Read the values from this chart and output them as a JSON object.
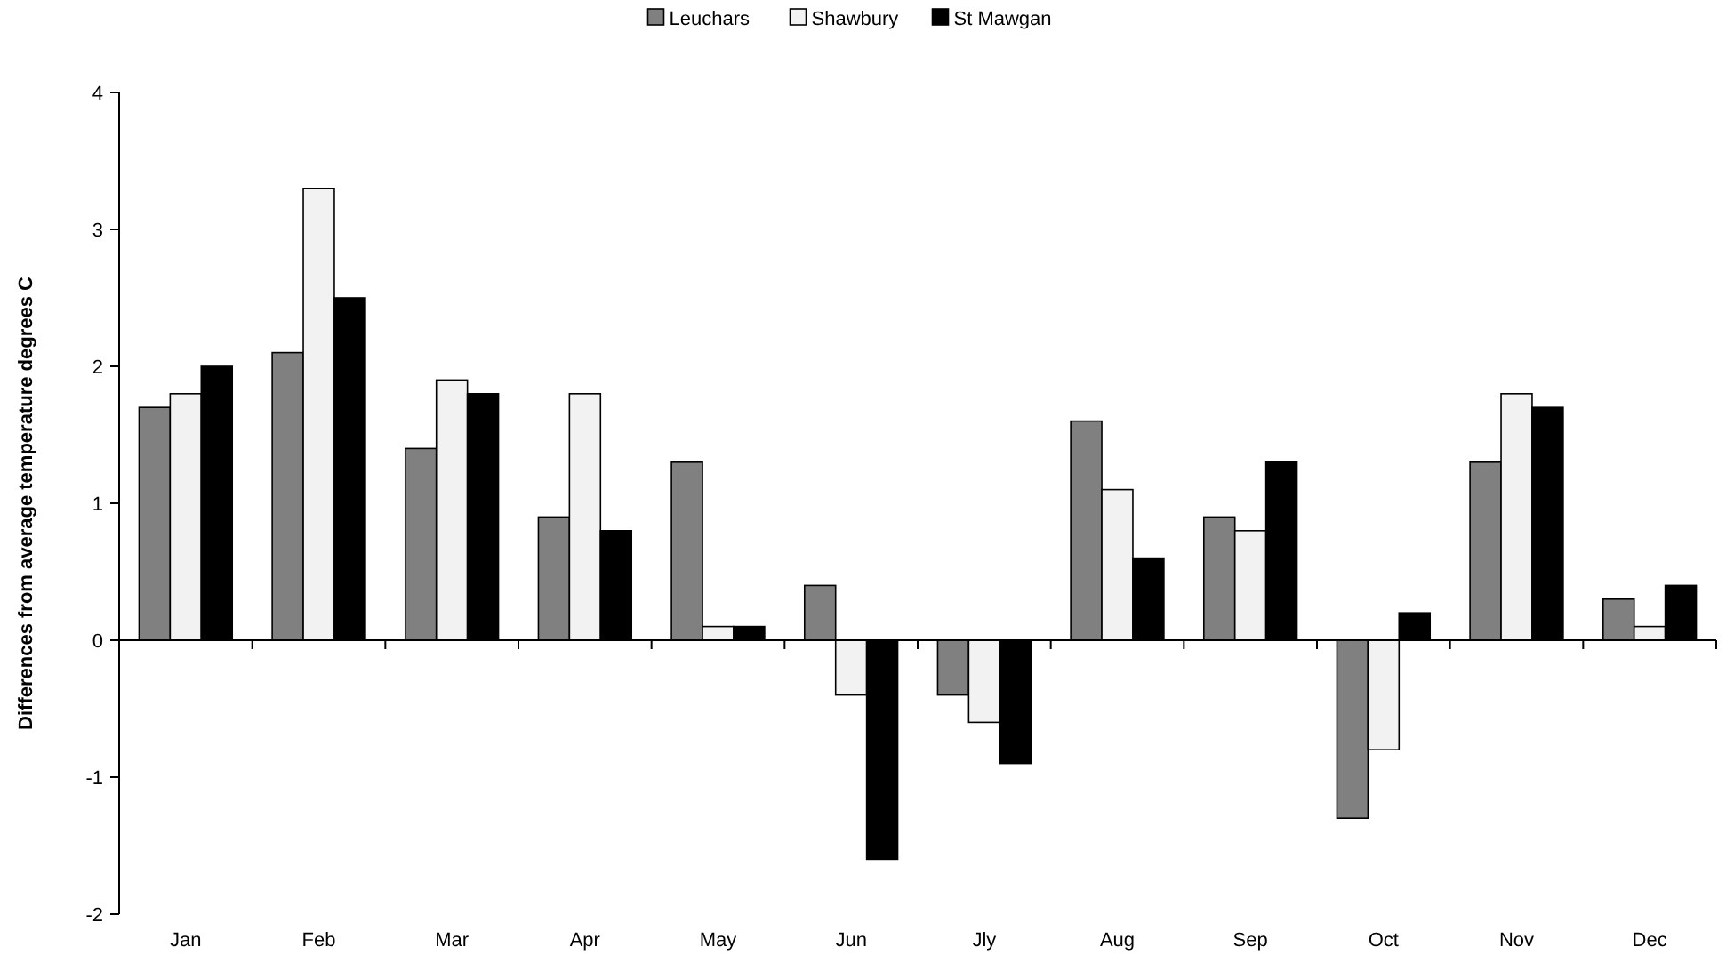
{
  "chart_data": {
    "type": "bar",
    "ylabel": "Differences from average temperature degrees C",
    "categories": [
      "Jan",
      "Feb",
      "Mar",
      "Apr",
      "May",
      "Jun",
      "Jly",
      "Aug",
      "Sep",
      "Oct",
      "Nov",
      "Dec"
    ],
    "series": [
      {
        "name": "Leuchars",
        "color": "#808080",
        "values": [
          1.7,
          2.1,
          1.4,
          0.9,
          1.3,
          0.4,
          -0.4,
          1.6,
          0.9,
          -1.3,
          1.3,
          0.3
        ]
      },
      {
        "name": "Shawbury",
        "color": "#f2f2f2",
        "values": [
          1.8,
          3.3,
          1.9,
          1.8,
          0.1,
          -0.4,
          -0.6,
          1.1,
          0.8,
          -0.8,
          1.8,
          0.1
        ]
      },
      {
        "name": "St Mawgan",
        "color": "#000000",
        "values": [
          2.0,
          2.5,
          1.8,
          0.8,
          0.1,
          -1.6,
          -0.9,
          0.6,
          1.3,
          0.2,
          1.7,
          0.4
        ]
      }
    ],
    "ylim": [
      -2,
      4
    ],
    "yticks": [
      -2,
      -1,
      0,
      1,
      2,
      3,
      4
    ],
    "legend": "top"
  }
}
